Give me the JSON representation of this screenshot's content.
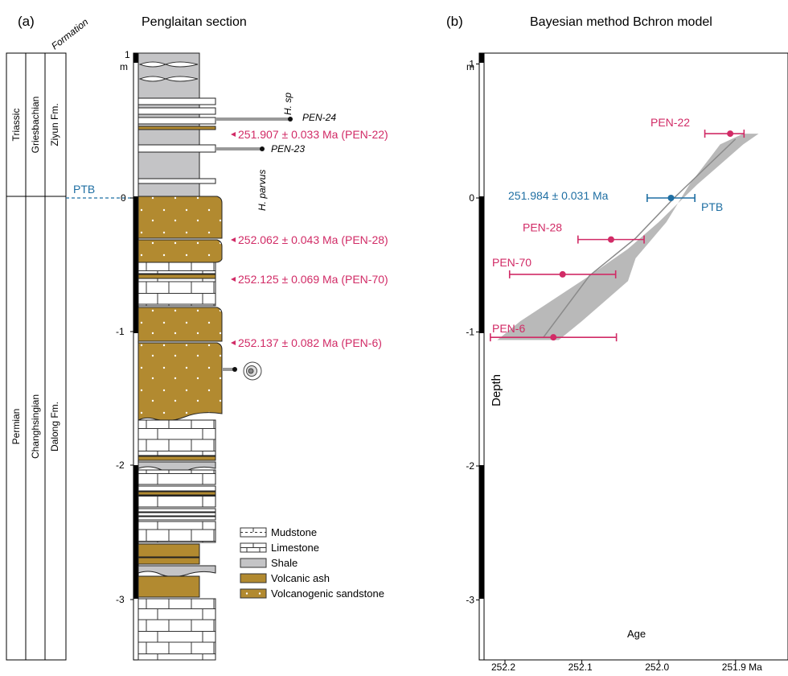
{
  "panel_a": {
    "label": "(a)",
    "title": "Penglaitan section",
    "formation_header": "Formation",
    "columns": {
      "system_upper": "Triassic",
      "system_lower": "Permian",
      "stage_upper": "Griesbachian",
      "stage_lower": "Changhsingian",
      "formation_upper": "Ziyun Fm.",
      "formation_lower": "Dalong Fm."
    },
    "ptb_label": "PTB",
    "depth_unit": "m",
    "depth_ticks": [
      "1",
      "0",
      "-1",
      "-2",
      "-3"
    ],
    "fossils": {
      "h_sp": "H. sp",
      "h_parvus": "H. parvus",
      "pen24": "PEN-24",
      "pen23": "PEN-23"
    },
    "ages": {
      "pen22": "251.907 ± 0.033 Ma (PEN-22)",
      "pen28": "252.062 ± 0.043 Ma (PEN-28)",
      "pen70": "252.125 ± 0.069 Ma (PEN-70)",
      "pen6": "252.137 ± 0.082 Ma (PEN-6)"
    },
    "legend": [
      {
        "label": "Mudstone"
      },
      {
        "label": "Limestone"
      },
      {
        "label": "Shale"
      },
      {
        "label": "Volcanic ash"
      },
      {
        "label": "Volcanogenic sandstone"
      }
    ],
    "colors": {
      "ash": "#b28a30",
      "shale": "#c4c4c6",
      "age_text": "#d12b66",
      "ptb": "#1f6fa3"
    }
  },
  "chart_data": {
    "type": "scatter",
    "panel_label": "(b)",
    "title": "Bayesian method Bchron model",
    "xlabel": "Age",
    "ylabel": "Depth",
    "y_unit": "m",
    "x_unit": "Ma",
    "x_reversed": true,
    "xlim": [
      252.22,
      251.83
    ],
    "ylim": [
      -3.3,
      1.1
    ],
    "x_ticks": [
      252.2,
      252.1,
      252.0,
      251.9
    ],
    "x_tick_labels": [
      "252.2",
      "252.1",
      "252.0",
      "251.9 Ma"
    ],
    "y_ticks": [
      1,
      0,
      -1,
      -2,
      -3
    ],
    "y_tick_labels": [
      "1",
      "0",
      "-1",
      "-2",
      "-3"
    ],
    "series": [
      {
        "name": "PEN-22",
        "x": 251.907,
        "err_left": 0.033,
        "err_right": 0.018,
        "y": 0.48,
        "color": "#d12b66"
      },
      {
        "name": "PTB",
        "label": "251.984 ± 0.031 Ma",
        "x": 251.984,
        "err": 0.031,
        "y": 0.0,
        "color": "#1f6fa3"
      },
      {
        "name": "PEN-28",
        "x": 252.062,
        "err": 0.043,
        "y": -0.31,
        "color": "#d12b66"
      },
      {
        "name": "PEN-70",
        "x": 252.125,
        "err": 0.069,
        "y": -0.57,
        "color": "#d12b66"
      },
      {
        "name": "PEN-6",
        "x": 252.137,
        "err": 0.082,
        "y": -1.04,
        "color": "#d12b66"
      }
    ],
    "model_envelope": {
      "upper": [
        [
          251.87,
          0.48
        ],
        [
          251.89,
          0.4
        ],
        [
          251.95,
          0.1
        ],
        [
          252.0,
          -0.18
        ],
        [
          252.04,
          -0.38
        ],
        [
          252.09,
          -0.58
        ],
        [
          252.18,
          -0.92
        ],
        [
          252.21,
          -1.06
        ]
      ],
      "lower": [
        [
          252.13,
          -1.06
        ],
        [
          252.1,
          -0.92
        ],
        [
          252.04,
          -0.62
        ],
        [
          252.03,
          -0.45
        ],
        [
          251.99,
          -0.18
        ],
        [
          251.96,
          0.1
        ],
        [
          251.92,
          0.4
        ],
        [
          251.89,
          0.48
        ]
      ],
      "median": [
        [
          251.9,
          0.44
        ],
        [
          251.98,
          0.0
        ],
        [
          252.03,
          -0.3
        ],
        [
          252.09,
          -0.58
        ],
        [
          252.15,
          -1.04
        ]
      ]
    }
  }
}
